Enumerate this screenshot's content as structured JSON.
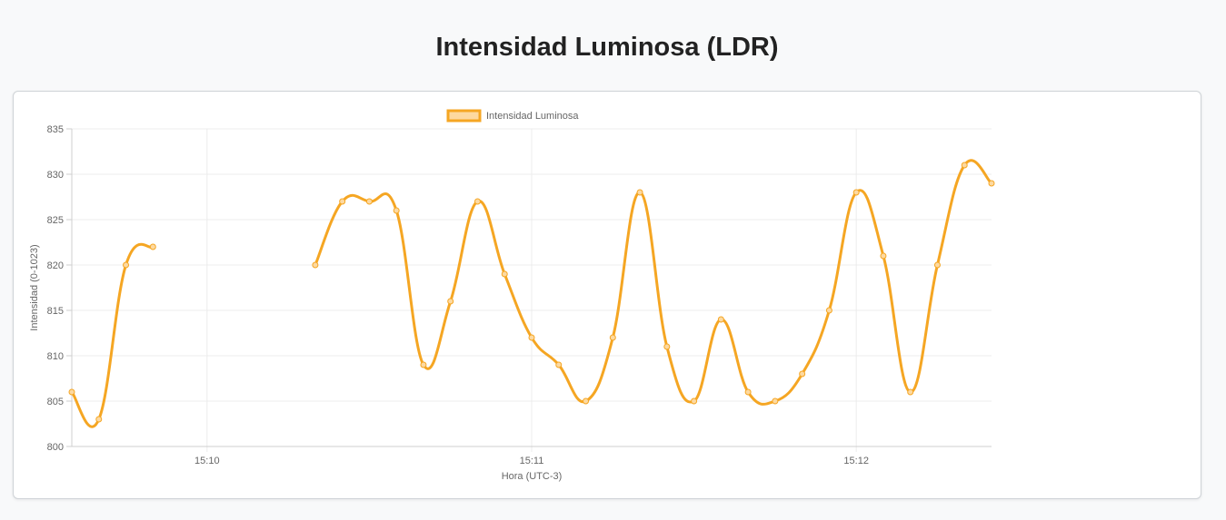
{
  "page": {
    "title": "Intensidad Luminosa (LDR)"
  },
  "chart_data": {
    "type": "line",
    "xlabel": "Hora (UTC-3)",
    "ylabel": "Intensidad (0-1023)",
    "ylim": [
      800,
      835
    ],
    "yticks": [
      800,
      805,
      810,
      815,
      820,
      825,
      830,
      835
    ],
    "xlim": [
      "15:09:35",
      "15:12:25"
    ],
    "xticks": [
      "15:10",
      "15:11",
      "15:12"
    ],
    "grid": true,
    "legend": {
      "placement": "top-center",
      "entries": [
        "Intensidad Luminosa"
      ]
    },
    "series": [
      {
        "name": "Intensidad Luminosa",
        "color": "#f5a623",
        "fill": "#fdd9a0",
        "x": [
          "15:09:35",
          "15:09:40",
          "15:09:45",
          "15:09:50",
          "15:10:20",
          "15:10:25",
          "15:10:30",
          "15:10:35",
          "15:10:40",
          "15:10:45",
          "15:10:50",
          "15:10:55",
          "15:11:00",
          "15:11:05",
          "15:11:10",
          "15:11:15",
          "15:11:20",
          "15:11:25",
          "15:11:30",
          "15:11:35",
          "15:11:40",
          "15:11:45",
          "15:11:50",
          "15:11:55",
          "15:12:00",
          "15:12:05",
          "15:12:10",
          "15:12:15",
          "15:12:20",
          "15:12:25"
        ],
        "y": [
          806,
          803,
          820,
          822,
          820,
          827,
          827,
          826,
          809,
          816,
          827,
          819,
          812,
          809,
          805,
          812,
          828,
          811,
          805,
          814,
          806,
          805,
          808,
          815,
          828,
          821,
          806,
          820,
          831,
          829
        ],
        "gaps_after": [
          "15:09:50"
        ]
      }
    ]
  }
}
